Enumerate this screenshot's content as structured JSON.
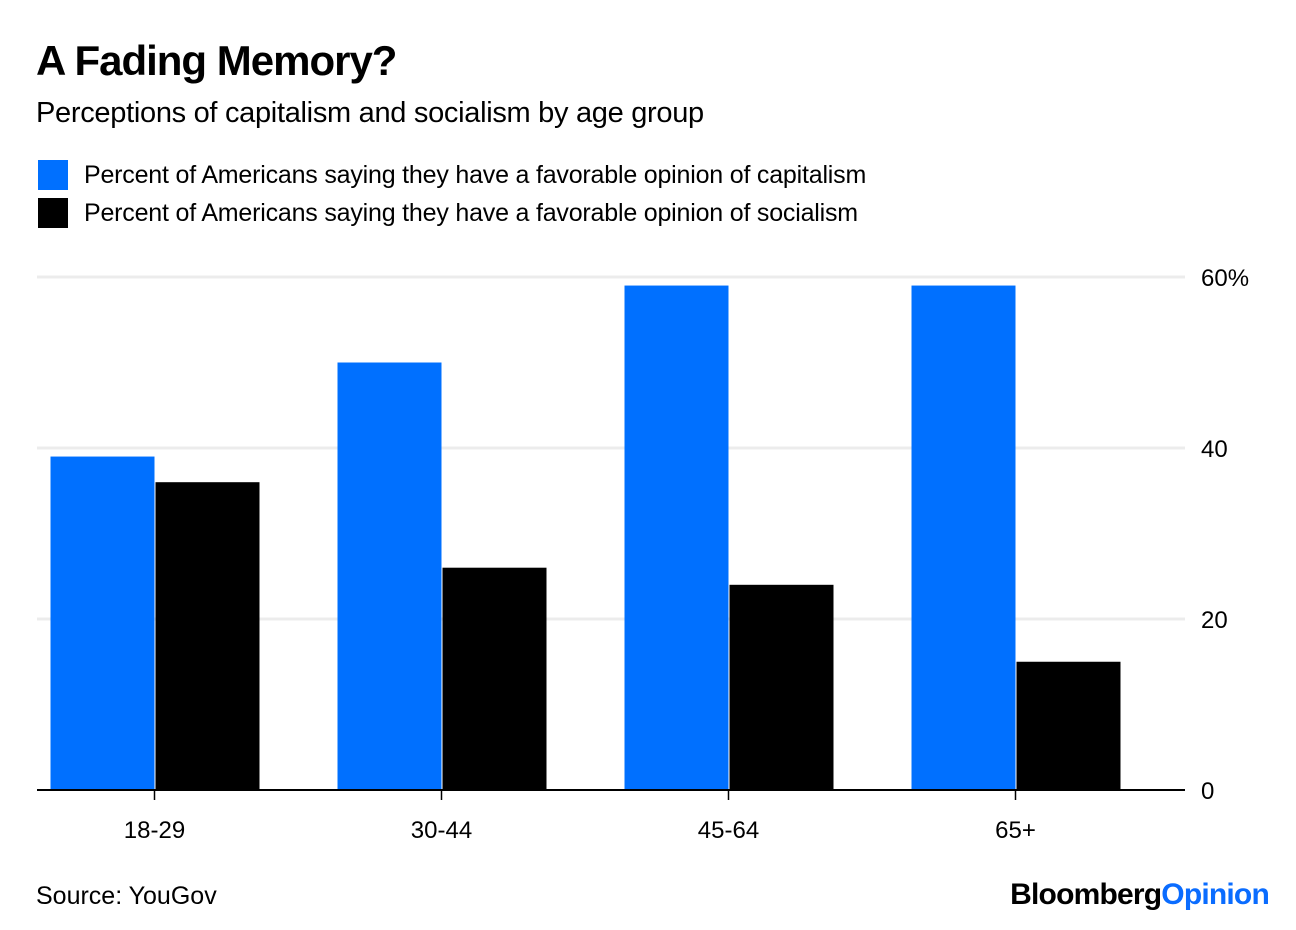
{
  "header": {
    "title": "A Fading Memory?",
    "subtitle": "Perceptions of capitalism and socialism by age group"
  },
  "legend": [
    {
      "label": "Percent of Americans saying they have a favorable opinion of capitalism",
      "color": "#0070ff"
    },
    {
      "label": "Percent of Americans saying they have a favorable opinion of socialism",
      "color": "#000000"
    }
  ],
  "footer": {
    "source": "Source: YouGov",
    "brand_part1": "Bloomberg",
    "brand_part2": "Opinion"
  },
  "chart_data": {
    "type": "bar",
    "title": "A Fading Memory?",
    "subtitle": "Perceptions of capitalism and socialism by age group",
    "categories": [
      "18-29",
      "30-44",
      "45-64",
      "65+"
    ],
    "series": [
      {
        "name": "Percent of Americans saying they have a favorable opinion of capitalism",
        "color": "#0070ff",
        "values": [
          39,
          50,
          59,
          59
        ]
      },
      {
        "name": "Percent of Americans saying they have a favorable opinion of socialism",
        "color": "#000000",
        "values": [
          36,
          26,
          24,
          15
        ]
      }
    ],
    "xlabel": "",
    "ylabel": "",
    "ylim": [
      0,
      60
    ],
    "yticks": [
      0,
      20,
      40,
      60
    ],
    "ytick_labels": [
      "0",
      "20",
      "40",
      "60%"
    ],
    "y_axis_side": "right",
    "grid": true,
    "legend_position": "top-left",
    "source": "Source: YouGov"
  }
}
